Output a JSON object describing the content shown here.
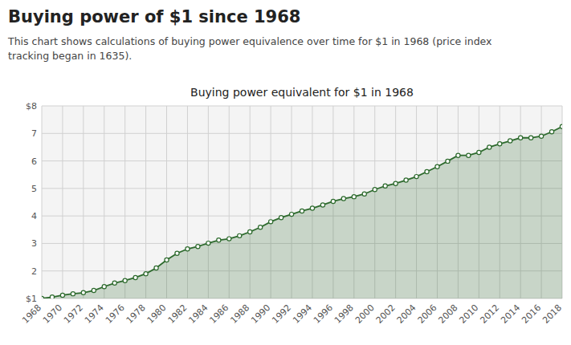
{
  "chart_data": {
    "type": "area",
    "title": "Buying power of $1 since 1968",
    "subtitle": "This chart shows calculations of buying power equivalence over time for $1 in 1968 (price index\ntracking began in 1635).",
    "annotations": [
      "Buying power equivalent for $1 in 1968"
    ],
    "x": [
      1968,
      1969,
      1970,
      1971,
      1972,
      1973,
      1974,
      1975,
      1976,
      1977,
      1978,
      1979,
      1980,
      1981,
      1982,
      1983,
      1984,
      1985,
      1986,
      1987,
      1988,
      1989,
      1990,
      1991,
      1992,
      1993,
      1994,
      1995,
      1996,
      1997,
      1998,
      1999,
      2000,
      2001,
      2002,
      2003,
      2004,
      2005,
      2006,
      2007,
      2008,
      2009,
      2010,
      2011,
      2012,
      2013,
      2014,
      2015,
      2016,
      2017,
      2018
    ],
    "values": [
      1.0,
      1.05,
      1.12,
      1.17,
      1.21,
      1.29,
      1.43,
      1.56,
      1.65,
      1.76,
      1.9,
      2.11,
      2.4,
      2.64,
      2.8,
      2.89,
      3.01,
      3.12,
      3.17,
      3.28,
      3.42,
      3.59,
      3.79,
      3.94,
      4.06,
      4.18,
      4.28,
      4.4,
      4.53,
      4.63,
      4.7,
      4.8,
      4.96,
      5.09,
      5.18,
      5.3,
      5.43,
      5.61,
      5.79,
      5.99,
      6.2,
      6.2,
      6.31,
      6.5,
      6.62,
      6.73,
      6.84,
      6.84,
      6.9,
      7.06,
      7.25
    ],
    "color": "#2d6a2d",
    "marker": "circle",
    "grid": true,
    "xlim": [
      1968,
      2018
    ],
    "xticks": [
      1968,
      1970,
      1972,
      1974,
      1976,
      1978,
      1980,
      1982,
      1984,
      1986,
      1988,
      1990,
      1992,
      1994,
      1996,
      1998,
      2000,
      2002,
      2004,
      2006,
      2008,
      2010,
      2012,
      2014,
      2016,
      2018
    ],
    "ylim": [
      1.0,
      8.0
    ],
    "yticks": [
      {
        "value": 1,
        "label": "$1"
      },
      2,
      3,
      4,
      5,
      6,
      7,
      {
        "value": 8,
        "label": "$8"
      }
    ]
  }
}
